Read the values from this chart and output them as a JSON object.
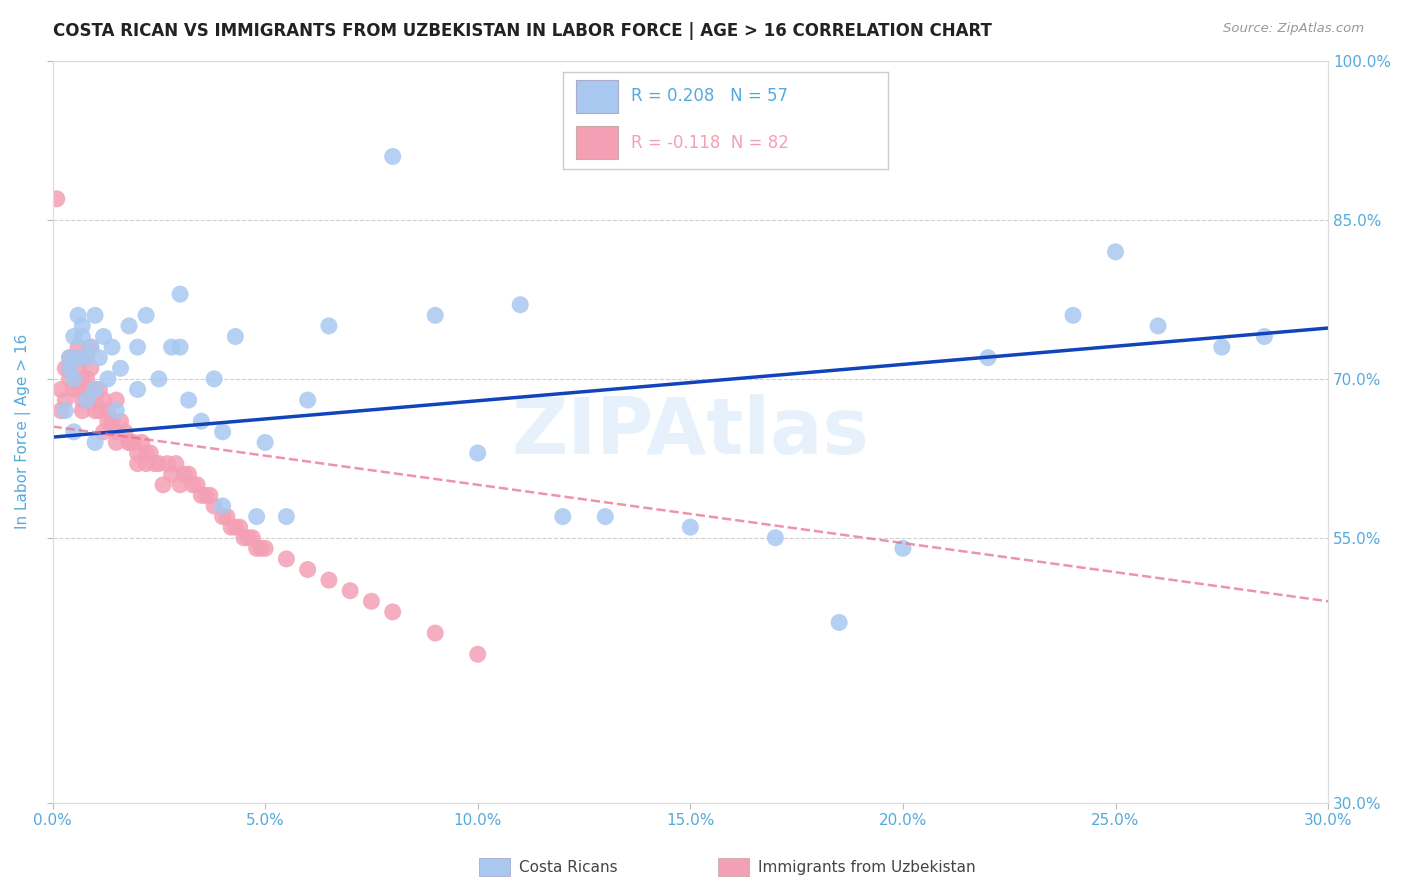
{
  "title": "COSTA RICAN VS IMMIGRANTS FROM UZBEKISTAN IN LABOR FORCE | AGE > 16 CORRELATION CHART",
  "source": "Source: ZipAtlas.com",
  "ylabel": "In Labor Force | Age > 16",
  "watermark": "ZIPAtlas",
  "xlim": [
    0.0,
    0.3
  ],
  "ylim": [
    0.3,
    1.0
  ],
  "yticks": [
    0.3,
    0.55,
    0.7,
    0.85,
    1.0
  ],
  "ytick_labels": [
    "30.0%",
    "55.0%",
    "70.0%",
    "85.0%",
    "100.0%"
  ],
  "xticks": [
    0.0,
    0.05,
    0.1,
    0.15,
    0.2,
    0.25,
    0.3
  ],
  "xtick_labels": [
    "0.0%",
    "5.0%",
    "10.0%",
    "15.0%",
    "20.0%",
    "25.0%",
    "30.0%"
  ],
  "blue_R": 0.208,
  "blue_N": 57,
  "pink_R": -0.118,
  "pink_N": 82,
  "blue_color": "#A8C8F0",
  "pink_color": "#F4A0B4",
  "trend_blue_color": "#1144BB",
  "trend_pink_color": "#E87090",
  "axis_color": "#55AADD",
  "grid_color": "#CCCCCC",
  "title_color": "#222222",
  "legend_label_blue": "Costa Ricans",
  "legend_label_pink": "Immigrants from Uzbekistan",
  "blue_x": [
    0.003,
    0.004,
    0.004,
    0.005,
    0.005,
    0.005,
    0.006,
    0.006,
    0.007,
    0.007,
    0.008,
    0.008,
    0.009,
    0.01,
    0.01,
    0.011,
    0.012,
    0.013,
    0.014,
    0.015,
    0.016,
    0.018,
    0.02,
    0.022,
    0.025,
    0.028,
    0.03,
    0.032,
    0.035,
    0.038,
    0.04,
    0.043,
    0.048,
    0.05,
    0.055,
    0.06,
    0.065,
    0.08,
    0.09,
    0.1,
    0.11,
    0.12,
    0.13,
    0.15,
    0.17,
    0.185,
    0.2,
    0.22,
    0.24,
    0.25,
    0.26,
    0.275,
    0.285,
    0.04,
    0.03,
    0.02,
    0.01
  ],
  "blue_y": [
    0.67,
    0.72,
    0.71,
    0.74,
    0.7,
    0.65,
    0.76,
    0.72,
    0.74,
    0.75,
    0.72,
    0.68,
    0.73,
    0.69,
    0.76,
    0.72,
    0.74,
    0.7,
    0.73,
    0.67,
    0.71,
    0.75,
    0.73,
    0.76,
    0.7,
    0.73,
    0.78,
    0.68,
    0.66,
    0.7,
    0.65,
    0.74,
    0.57,
    0.64,
    0.57,
    0.68,
    0.75,
    0.91,
    0.76,
    0.63,
    0.77,
    0.57,
    0.57,
    0.56,
    0.55,
    0.47,
    0.54,
    0.72,
    0.76,
    0.82,
    0.75,
    0.73,
    0.74,
    0.58,
    0.73,
    0.69,
    0.64
  ],
  "pink_x": [
    0.001,
    0.002,
    0.002,
    0.003,
    0.003,
    0.004,
    0.004,
    0.004,
    0.005,
    0.005,
    0.005,
    0.006,
    0.006,
    0.006,
    0.007,
    0.007,
    0.007,
    0.007,
    0.008,
    0.008,
    0.008,
    0.009,
    0.009,
    0.009,
    0.01,
    0.01,
    0.01,
    0.011,
    0.011,
    0.012,
    0.012,
    0.013,
    0.013,
    0.014,
    0.015,
    0.015,
    0.015,
    0.016,
    0.017,
    0.018,
    0.018,
    0.019,
    0.02,
    0.02,
    0.021,
    0.022,
    0.022,
    0.023,
    0.024,
    0.025,
    0.026,
    0.027,
    0.028,
    0.029,
    0.03,
    0.031,
    0.032,
    0.033,
    0.034,
    0.035,
    0.036,
    0.037,
    0.038,
    0.04,
    0.041,
    0.042,
    0.043,
    0.044,
    0.045,
    0.046,
    0.047,
    0.048,
    0.049,
    0.05,
    0.055,
    0.06,
    0.065,
    0.07,
    0.075,
    0.08,
    0.09,
    0.1
  ],
  "pink_y": [
    0.87,
    0.69,
    0.67,
    0.71,
    0.68,
    0.72,
    0.71,
    0.7,
    0.72,
    0.7,
    0.69,
    0.73,
    0.71,
    0.69,
    0.72,
    0.7,
    0.68,
    0.67,
    0.72,
    0.7,
    0.68,
    0.73,
    0.71,
    0.69,
    0.69,
    0.68,
    0.67,
    0.69,
    0.67,
    0.68,
    0.65,
    0.67,
    0.66,
    0.66,
    0.68,
    0.65,
    0.64,
    0.66,
    0.65,
    0.64,
    0.64,
    0.64,
    0.63,
    0.62,
    0.64,
    0.62,
    0.63,
    0.63,
    0.62,
    0.62,
    0.6,
    0.62,
    0.61,
    0.62,
    0.6,
    0.61,
    0.61,
    0.6,
    0.6,
    0.59,
    0.59,
    0.59,
    0.58,
    0.57,
    0.57,
    0.56,
    0.56,
    0.56,
    0.55,
    0.55,
    0.55,
    0.54,
    0.54,
    0.54,
    0.53,
    0.52,
    0.51,
    0.5,
    0.49,
    0.48,
    0.46,
    0.44
  ],
  "blue_trend_x0": 0.0,
  "blue_trend_y0": 0.645,
  "blue_trend_x1": 0.3,
  "blue_trend_y1": 0.748,
  "pink_trend_x0": 0.0,
  "pink_trend_y0": 0.655,
  "pink_trend_x1": 0.3,
  "pink_trend_y1": 0.49
}
